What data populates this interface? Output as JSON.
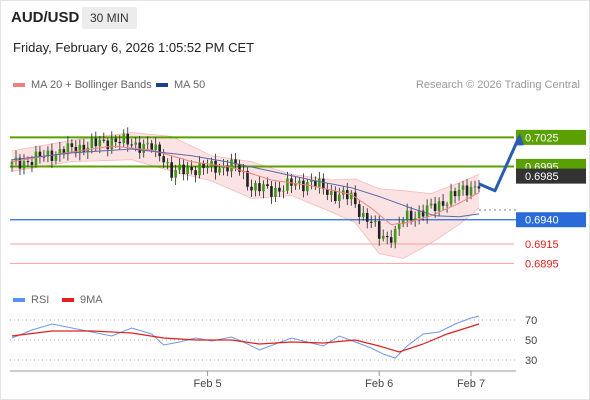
{
  "header": {
    "symbol": "AUD/USD",
    "timeframe": "30 MIN",
    "datetime": "Friday, February 6, 2026 1:05:52 PM CET"
  },
  "legend": {
    "items": [
      {
        "label": "MA 20 + Bollinger Bands",
        "color": "#f08080"
      },
      {
        "label": "MA 50",
        "color": "#1f3f8f"
      }
    ],
    "credit": "Research © 2026 Trading Central"
  },
  "rsi_legend": {
    "items": [
      {
        "label": "RSI",
        "color": "#5b8ff9"
      },
      {
        "label": "9MA",
        "color": "#e0201c"
      }
    ]
  },
  "chart_data": [
    {
      "type": "candlestick",
      "panel": "price",
      "ylim": [
        0.6885,
        0.7045
      ],
      "x_ticks": [
        {
          "label": "Feb 5",
          "index": 49
        },
        {
          "label": "Feb 6",
          "index": 92
        },
        {
          "label": "Feb 7",
          "index": 115
        }
      ],
      "levels": [
        {
          "value": 0.7025,
          "label": "0.7025",
          "kind": "green-line"
        },
        {
          "value": 0.6995,
          "label": "0.6995",
          "kind": "green-line"
        },
        {
          "value": 0.6985,
          "label": "0.6985",
          "kind": "price-tag"
        },
        {
          "value": 0.694,
          "label": "0.6940",
          "kind": "blue-line"
        },
        {
          "value": 0.6915,
          "label": "0.6915",
          "kind": "red-line"
        },
        {
          "value": 0.6895,
          "label": "0.6895",
          "kind": "red-line"
        }
      ],
      "close_path": [
        [
          0,
          0.6997
        ],
        [
          5,
          0.7002
        ],
        [
          10,
          0.7008
        ],
        [
          15,
          0.7013
        ],
        [
          20,
          0.7017
        ],
        [
          25,
          0.7022
        ],
        [
          30,
          0.7019
        ],
        [
          35,
          0.7014
        ],
        [
          38,
          0.7005
        ],
        [
          40,
          0.6988
        ],
        [
          45,
          0.6993
        ],
        [
          50,
          0.6994
        ],
        [
          55,
          0.6996
        ],
        [
          57,
          0.6992
        ],
        [
          60,
          0.6974
        ],
        [
          65,
          0.697
        ],
        [
          70,
          0.6976
        ],
        [
          75,
          0.6979
        ],
        [
          78,
          0.6972
        ],
        [
          80,
          0.6967
        ],
        [
          85,
          0.6963
        ],
        [
          88,
          0.6944
        ],
        [
          90,
          0.6937
        ],
        [
          92,
          0.6924
        ],
        [
          94,
          0.6922
        ],
        [
          96,
          0.6926
        ],
        [
          98,
          0.6941
        ],
        [
          102,
          0.6947
        ],
        [
          106,
          0.6953
        ],
        [
          110,
          0.6964
        ],
        [
          114,
          0.6972
        ],
        [
          117,
          0.6977
        ]
      ],
      "ma20_path": [
        [
          0,
          0.7
        ],
        [
          15,
          0.701
        ],
        [
          25,
          0.7016
        ],
        [
          35,
          0.7012
        ],
        [
          45,
          0.7
        ],
        [
          55,
          0.6994
        ],
        [
          65,
          0.6981
        ],
        [
          75,
          0.6975
        ],
        [
          85,
          0.6966
        ],
        [
          90,
          0.6952
        ],
        [
          95,
          0.6935
        ],
        [
          100,
          0.6938
        ],
        [
          105,
          0.6944
        ],
        [
          112,
          0.6957
        ],
        [
          117,
          0.6968
        ]
      ],
      "bb_upper_path": [
        [
          0,
          0.7011
        ],
        [
          15,
          0.7022
        ],
        [
          30,
          0.703
        ],
        [
          40,
          0.7026
        ],
        [
          50,
          0.7006
        ],
        [
          60,
          0.7
        ],
        [
          70,
          0.6987
        ],
        [
          80,
          0.6981
        ],
        [
          86,
          0.6982
        ],
        [
          92,
          0.6972
        ],
        [
          98,
          0.697
        ],
        [
          105,
          0.6967
        ],
        [
          112,
          0.6978
        ],
        [
          117,
          0.6987
        ]
      ],
      "bb_lower_path": [
        [
          0,
          0.699
        ],
        [
          15,
          0.7
        ],
        [
          30,
          0.7002
        ],
        [
          40,
          0.699
        ],
        [
          50,
          0.698
        ],
        [
          60,
          0.6962
        ],
        [
          70,
          0.6965
        ],
        [
          80,
          0.6948
        ],
        [
          86,
          0.6937
        ],
        [
          92,
          0.6905
        ],
        [
          98,
          0.69
        ],
        [
          105,
          0.6916
        ],
        [
          112,
          0.6935
        ],
        [
          117,
          0.6952
        ]
      ],
      "ma50_path": [
        [
          0,
          0.7002
        ],
        [
          15,
          0.7009
        ],
        [
          30,
          0.7013
        ],
        [
          45,
          0.7006
        ],
        [
          55,
          0.6999
        ],
        [
          65,
          0.699
        ],
        [
          75,
          0.6981
        ],
        [
          85,
          0.6973
        ],
        [
          92,
          0.6964
        ],
        [
          100,
          0.6952
        ],
        [
          106,
          0.6944
        ],
        [
          112,
          0.6943
        ],
        [
          117,
          0.6946
        ]
      ],
      "projection": [
        [
          117,
          0.6977
        ],
        [
          121,
          0.697
        ],
        [
          127,
          0.7025
        ]
      ],
      "candle_count": 118
    },
    {
      "type": "line",
      "panel": "rsi",
      "ylim": [
        20,
        80
      ],
      "y_ticks": [
        30,
        50,
        70
      ],
      "rsi_path": [
        [
          0,
          52
        ],
        [
          5,
          60
        ],
        [
          10,
          66
        ],
        [
          15,
          62
        ],
        [
          20,
          58
        ],
        [
          25,
          54
        ],
        [
          30,
          62
        ],
        [
          35,
          56
        ],
        [
          38,
          45
        ],
        [
          42,
          48
        ],
        [
          46,
          52
        ],
        [
          50,
          49
        ],
        [
          55,
          53
        ],
        [
          58,
          48
        ],
        [
          62,
          40
        ],
        [
          66,
          46
        ],
        [
          70,
          52
        ],
        [
          74,
          48
        ],
        [
          78,
          44
        ],
        [
          82,
          54
        ],
        [
          86,
          48
        ],
        [
          90,
          42
        ],
        [
          93,
          36
        ],
        [
          96,
          32
        ],
        [
          99,
          44
        ],
        [
          103,
          56
        ],
        [
          107,
          58
        ],
        [
          111,
          66
        ],
        [
          115,
          72
        ],
        [
          117,
          74
        ]
      ],
      "ma_path": [
        [
          0,
          54
        ],
        [
          10,
          59
        ],
        [
          20,
          59
        ],
        [
          30,
          57
        ],
        [
          38,
          52
        ],
        [
          46,
          50
        ],
        [
          55,
          50
        ],
        [
          62,
          46
        ],
        [
          70,
          48
        ],
        [
          78,
          47
        ],
        [
          86,
          50
        ],
        [
          92,
          44
        ],
        [
          97,
          38
        ],
        [
          103,
          46
        ],
        [
          109,
          56
        ],
        [
          117,
          66
        ]
      ]
    }
  ]
}
